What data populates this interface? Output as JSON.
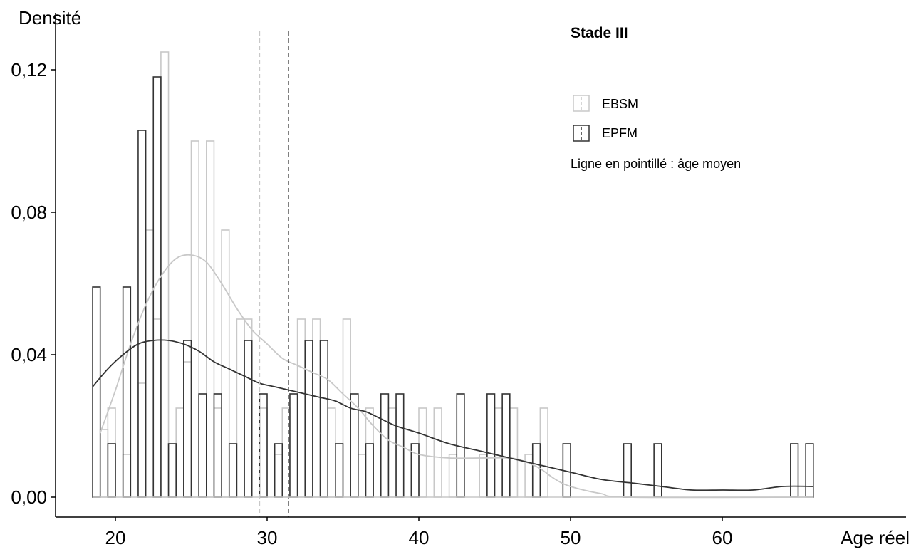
{
  "chart_data": {
    "type": "bar",
    "title": "Stade III",
    "ylabel": "Densité",
    "xlabel": "Age réel",
    "xlim": [
      16,
      66
    ],
    "ylim": [
      0,
      0.13
    ],
    "x_ticks": [
      {
        "value": 20,
        "label": "20"
      },
      {
        "value": 30,
        "label": "30"
      },
      {
        "value": 40,
        "label": "40"
      },
      {
        "value": 50,
        "label": "50"
      },
      {
        "value": 60,
        "label": "60"
      }
    ],
    "y_ticks": [
      {
        "value": 0,
        "label": "0,00"
      },
      {
        "value": 0.04,
        "label": "0,04"
      },
      {
        "value": 0.08,
        "label": "0,08"
      },
      {
        "value": 0.12,
        "label": "0,12"
      }
    ],
    "bin_width": 0.5,
    "grid": false,
    "legend_position": "top-right",
    "note": "Ligne en pointillé : âge moyen",
    "series": [
      {
        "name": "EBSM",
        "color": "#c8c8c8",
        "mean": 29.5,
        "bars": [
          {
            "x": 19,
            "y": 0.019
          },
          {
            "x": 19.5,
            "y": 0.025
          },
          {
            "x": 20.5,
            "y": 0.012
          },
          {
            "x": 21.5,
            "y": 0.032
          },
          {
            "x": 22,
            "y": 0.075
          },
          {
            "x": 22.5,
            "y": 0.05
          },
          {
            "x": 23,
            "y": 0.125
          },
          {
            "x": 24,
            "y": 0.025
          },
          {
            "x": 24.5,
            "y": 0.038
          },
          {
            "x": 25,
            "y": 0.1
          },
          {
            "x": 26,
            "y": 0.1
          },
          {
            "x": 26.5,
            "y": 0.025
          },
          {
            "x": 27,
            "y": 0.075
          },
          {
            "x": 28,
            "y": 0.05
          },
          {
            "x": 28.5,
            "y": 0.05
          },
          {
            "x": 29.5,
            "y": 0.025
          },
          {
            "x": 30.5,
            "y": 0.012
          },
          {
            "x": 31,
            "y": 0.025
          },
          {
            "x": 32,
            "y": 0.05
          },
          {
            "x": 33,
            "y": 0.05
          },
          {
            "x": 34,
            "y": 0.025
          },
          {
            "x": 35,
            "y": 0.05
          },
          {
            "x": 36,
            "y": 0.012
          },
          {
            "x": 36.5,
            "y": 0.025
          },
          {
            "x": 38,
            "y": 0.025
          },
          {
            "x": 40,
            "y": 0.025
          },
          {
            "x": 41,
            "y": 0.025
          },
          {
            "x": 42,
            "y": 0.012
          },
          {
            "x": 44,
            "y": 0.012
          },
          {
            "x": 45,
            "y": 0.025
          },
          {
            "x": 46,
            "y": 0.025
          },
          {
            "x": 47,
            "y": 0.012
          },
          {
            "x": 48,
            "y": 0.025
          }
        ],
        "density": [
          {
            "x": 19,
            "y": 0.018
          },
          {
            "x": 20,
            "y": 0.03
          },
          {
            "x": 21,
            "y": 0.043
          },
          {
            "x": 22,
            "y": 0.054
          },
          {
            "x": 23,
            "y": 0.062
          },
          {
            "x": 24,
            "y": 0.067
          },
          {
            "x": 25,
            "y": 0.068
          },
          {
            "x": 26,
            "y": 0.066
          },
          {
            "x": 27,
            "y": 0.06
          },
          {
            "x": 28,
            "y": 0.053
          },
          {
            "x": 29,
            "y": 0.047
          },
          {
            "x": 30,
            "y": 0.043
          },
          {
            "x": 31,
            "y": 0.039
          },
          {
            "x": 32,
            "y": 0.037
          },
          {
            "x": 33,
            "y": 0.035
          },
          {
            "x": 34,
            "y": 0.033
          },
          {
            "x": 35,
            "y": 0.029
          },
          {
            "x": 36,
            "y": 0.025
          },
          {
            "x": 37,
            "y": 0.02
          },
          {
            "x": 38,
            "y": 0.016
          },
          {
            "x": 39,
            "y": 0.014
          },
          {
            "x": 40,
            "y": 0.012
          },
          {
            "x": 42,
            "y": 0.011
          },
          {
            "x": 44,
            "y": 0.011
          },
          {
            "x": 46,
            "y": 0.011
          },
          {
            "x": 47,
            "y": 0.01
          },
          {
            "x": 48,
            "y": 0.008
          },
          {
            "x": 49,
            "y": 0.005
          },
          {
            "x": 50,
            "y": 0.003
          },
          {
            "x": 52,
            "y": 0.001
          },
          {
            "x": 54,
            "y": 0.0
          },
          {
            "x": 66,
            "y": 0.0
          }
        ]
      },
      {
        "name": "EPFM",
        "color": "#333333",
        "mean": 31.4,
        "bars": [
          {
            "x": 18.5,
            "y": 0.059
          },
          {
            "x": 19.5,
            "y": 0.015
          },
          {
            "x": 20.5,
            "y": 0.059
          },
          {
            "x": 21.5,
            "y": 0.103
          },
          {
            "x": 22.5,
            "y": 0.118
          },
          {
            "x": 23.5,
            "y": 0.015
          },
          {
            "x": 24.5,
            "y": 0.044
          },
          {
            "x": 25.5,
            "y": 0.029
          },
          {
            "x": 26.5,
            "y": 0.029
          },
          {
            "x": 27.5,
            "y": 0.015
          },
          {
            "x": 28.5,
            "y": 0.044
          },
          {
            "x": 29.5,
            "y": 0.029
          },
          {
            "x": 30.5,
            "y": 0.015
          },
          {
            "x": 31.5,
            "y": 0.029
          },
          {
            "x": 32.5,
            "y": 0.044
          },
          {
            "x": 33.5,
            "y": 0.044
          },
          {
            "x": 34.5,
            "y": 0.015
          },
          {
            "x": 35.5,
            "y": 0.029
          },
          {
            "x": 36.5,
            "y": 0.015
          },
          {
            "x": 37.5,
            "y": 0.029
          },
          {
            "x": 38.5,
            "y": 0.029
          },
          {
            "x": 39.5,
            "y": 0.015
          },
          {
            "x": 42.5,
            "y": 0.029
          },
          {
            "x": 44.5,
            "y": 0.029
          },
          {
            "x": 45.5,
            "y": 0.029
          },
          {
            "x": 47.5,
            "y": 0.015
          },
          {
            "x": 49.5,
            "y": 0.015
          },
          {
            "x": 53.5,
            "y": 0.015
          },
          {
            "x": 55.5,
            "y": 0.015
          },
          {
            "x": 64.5,
            "y": 0.015
          },
          {
            "x": 65.5,
            "y": 0.015
          }
        ],
        "density": [
          {
            "x": 18.5,
            "y": 0.031
          },
          {
            "x": 19.5,
            "y": 0.036
          },
          {
            "x": 20.5,
            "y": 0.04
          },
          {
            "x": 21.5,
            "y": 0.043
          },
          {
            "x": 22.5,
            "y": 0.044
          },
          {
            "x": 23.5,
            "y": 0.044
          },
          {
            "x": 24.5,
            "y": 0.043
          },
          {
            "x": 25.5,
            "y": 0.041
          },
          {
            "x": 26.5,
            "y": 0.038
          },
          {
            "x": 27.5,
            "y": 0.036
          },
          {
            "x": 28.5,
            "y": 0.034
          },
          {
            "x": 29.5,
            "y": 0.032
          },
          {
            "x": 30.5,
            "y": 0.031
          },
          {
            "x": 31.5,
            "y": 0.03
          },
          {
            "x": 32.5,
            "y": 0.029
          },
          {
            "x": 33.5,
            "y": 0.028
          },
          {
            "x": 34.5,
            "y": 0.027
          },
          {
            "x": 35.5,
            "y": 0.025
          },
          {
            "x": 36.5,
            "y": 0.024
          },
          {
            "x": 37.5,
            "y": 0.022
          },
          {
            "x": 38.5,
            "y": 0.02
          },
          {
            "x": 40,
            "y": 0.018
          },
          {
            "x": 42,
            "y": 0.015
          },
          {
            "x": 44,
            "y": 0.013
          },
          {
            "x": 46,
            "y": 0.011
          },
          {
            "x": 48,
            "y": 0.009
          },
          {
            "x": 50,
            "y": 0.007
          },
          {
            "x": 52,
            "y": 0.005
          },
          {
            "x": 54,
            "y": 0.004
          },
          {
            "x": 56,
            "y": 0.003
          },
          {
            "x": 58,
            "y": 0.002
          },
          {
            "x": 60,
            "y": 0.002
          },
          {
            "x": 62,
            "y": 0.002
          },
          {
            "x": 64,
            "y": 0.003
          },
          {
            "x": 66,
            "y": 0.003
          }
        ]
      }
    ]
  }
}
